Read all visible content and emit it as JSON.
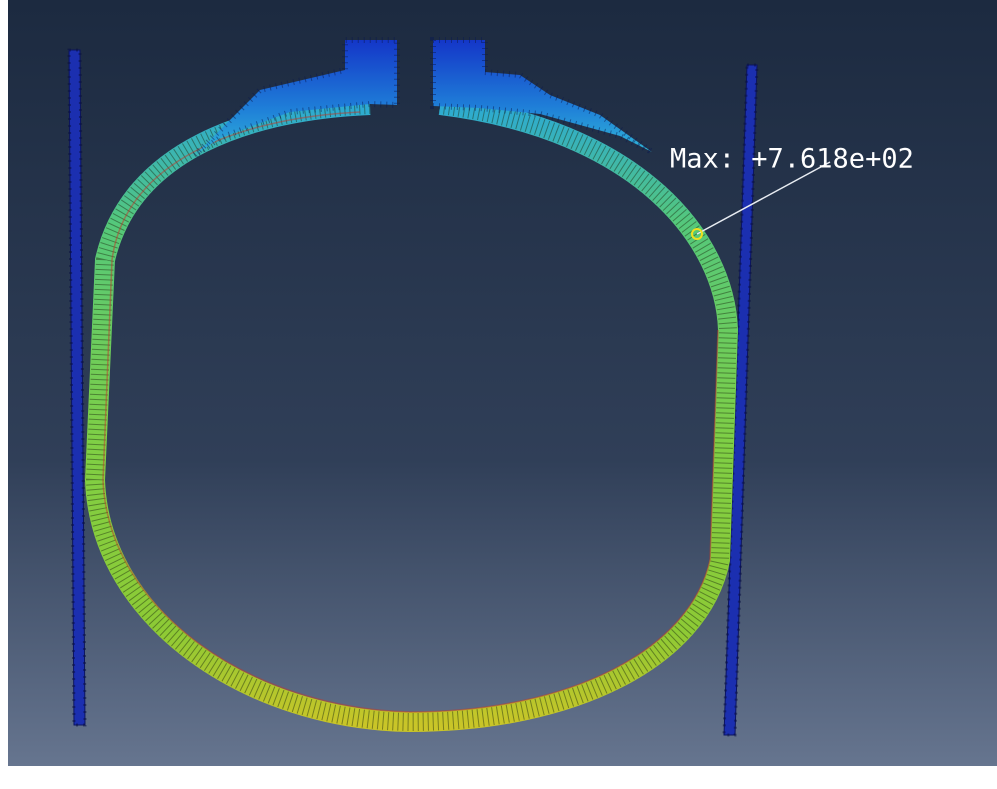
{
  "viewport": {
    "annotation": "Max: +7.618e+02"
  }
}
